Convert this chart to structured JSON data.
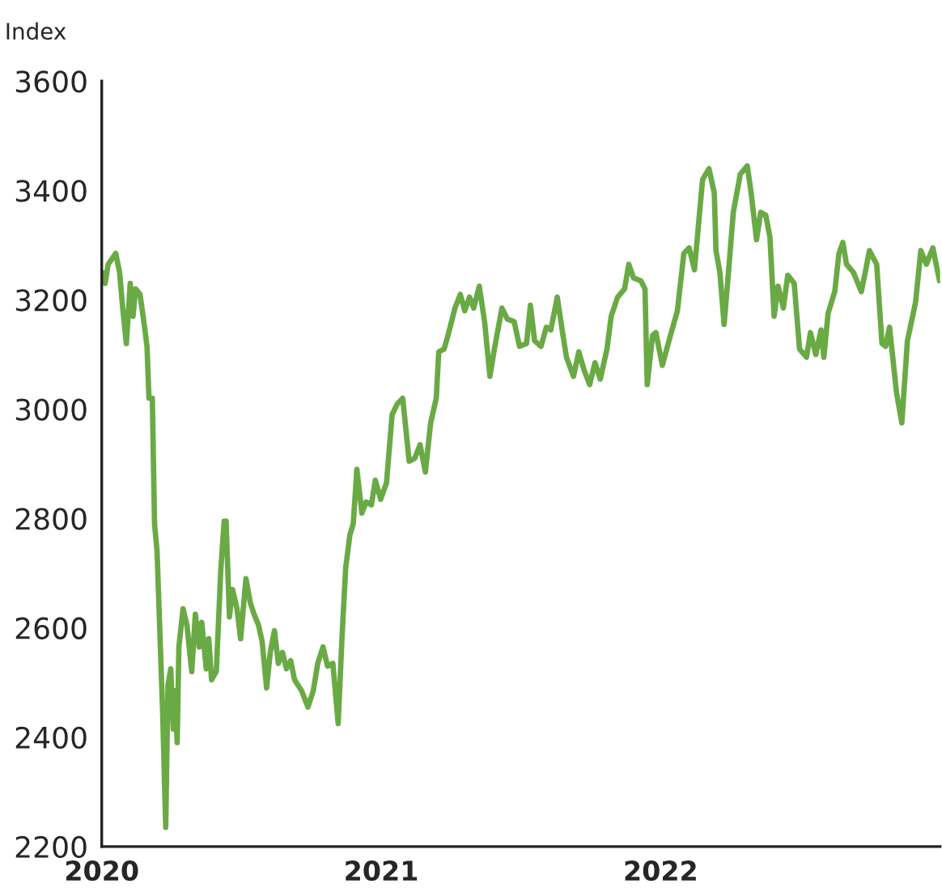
{
  "chart_data": {
    "type": "line",
    "ylabel": "Index",
    "xlim": [
      2020,
      2023
    ],
    "xticks": [
      2020,
      2021,
      2022
    ],
    "ylim": [
      2200,
      3600
    ],
    "yticks": [
      2200,
      2400,
      2600,
      2800,
      3000,
      3200,
      3400,
      3600
    ],
    "grid": false,
    "legend": false,
    "series": [
      {
        "color": "#6aaa45",
        "x": [
          2020.002,
          2020.012,
          2020.023,
          2020.05,
          2020.064,
          2020.075,
          2020.088,
          2020.102,
          2020.112,
          2020.121,
          2020.137,
          2020.152,
          2020.162,
          2020.169,
          2020.181,
          2020.189,
          2020.198,
          2020.218,
          2020.225,
          2020.229,
          2020.237,
          2020.247,
          2020.256,
          2020.262,
          2020.27,
          2020.276,
          2020.291,
          2020.305,
          2020.322,
          2020.335,
          2020.349,
          2020.358,
          2020.374,
          2020.383,
          2020.393,
          2020.41,
          2020.426,
          2020.438,
          2020.445,
          2020.457,
          2020.468,
          2020.484,
          2020.497,
          2020.516,
          2020.532,
          2020.545,
          2020.561,
          2020.574,
          2020.59,
          2020.603,
          2020.618,
          2020.632,
          2020.647,
          2020.661,
          2020.676,
          2020.69,
          2020.715,
          2020.738,
          2020.757,
          2020.773,
          2020.792,
          2020.808,
          2020.827,
          2020.846,
          2020.86,
          2020.873,
          2020.888,
          2020.9,
          2020.913,
          2020.931,
          2020.946,
          2020.965,
          2020.979,
          2020.998,
          2021.019,
          2021.039,
          2021.058,
          2021.077,
          2021.1,
          2021.12,
          2021.139,
          2021.158,
          2021.177,
          2021.197,
          2021.206,
          2021.225,
          2021.239,
          2021.264,
          2021.283,
          2021.299,
          2021.316,
          2021.331,
          2021.351,
          2021.37,
          2021.389,
          2021.405,
          2021.432,
          2021.451,
          2021.476,
          2021.495,
          2021.52,
          2021.534,
          2021.549,
          2021.572,
          2021.591,
          2021.607,
          2021.63,
          2021.649,
          2021.663,
          2021.688,
          2021.707,
          2021.727,
          2021.746,
          2021.765,
          2021.784,
          2021.808,
          2021.823,
          2021.846,
          2021.871,
          2021.886,
          2021.903,
          2021.929,
          2021.944,
          2021.952,
          2021.971,
          2021.983,
          2022.006,
          2022.035,
          2022.06,
          2022.083,
          2022.102,
          2022.121,
          2022.135,
          2022.15,
          2022.173,
          2022.192,
          2022.198,
          2022.212,
          2022.227,
          2022.241,
          2022.26,
          2022.285,
          2022.31,
          2022.324,
          2022.343,
          2022.358,
          2022.376,
          2022.391,
          2022.406,
          2022.42,
          2022.439,
          2022.455,
          2022.478,
          2022.497,
          2022.522,
          2022.536,
          2022.555,
          2022.574,
          2022.584,
          2022.599,
          2022.623,
          2022.638,
          2022.652,
          2022.665,
          2022.69,
          2022.718,
          2022.734,
          2022.747,
          2022.773,
          2022.792,
          2022.805,
          2022.819,
          2022.844,
          2022.863,
          2022.883,
          2022.912,
          2022.931,
          2022.951,
          2022.974,
          2022.998
        ],
        "values": [
          3250,
          3230,
          3265,
          3285,
          3250,
          3185,
          3120,
          3230,
          3170,
          3220,
          3210,
          3155,
          3115,
          3020,
          3020,
          2790,
          2740,
          2445,
          2310,
          2235,
          2495,
          2525,
          2415,
          2485,
          2390,
          2565,
          2635,
          2605,
          2520,
          2625,
          2565,
          2610,
          2525,
          2580,
          2505,
          2520,
          2705,
          2795,
          2795,
          2620,
          2670,
          2635,
          2580,
          2690,
          2645,
          2625,
          2605,
          2575,
          2490,
          2555,
          2595,
          2535,
          2555,
          2525,
          2540,
          2505,
          2485,
          2455,
          2485,
          2535,
          2565,
          2530,
          2535,
          2425,
          2585,
          2710,
          2770,
          2790,
          2890,
          2810,
          2830,
          2825,
          2870,
          2835,
          2865,
          2990,
          3010,
          3020,
          2905,
          2910,
          2935,
          2885,
          2975,
          3020,
          3105,
          3110,
          3135,
          3185,
          3210,
          3180,
          3205,
          3185,
          3225,
          3160,
          3060,
          3110,
          3185,
          3165,
          3160,
          3115,
          3120,
          3190,
          3125,
          3115,
          3150,
          3145,
          3205,
          3140,
          3095,
          3060,
          3105,
          3070,
          3045,
          3085,
          3055,
          3110,
          3170,
          3205,
          3220,
          3265,
          3240,
          3235,
          3220,
          3045,
          3135,
          3140,
          3080,
          3135,
          3180,
          3285,
          3295,
          3255,
          3335,
          3420,
          3440,
          3395,
          3290,
          3250,
          3155,
          3240,
          3360,
          3430,
          3445,
          3395,
          3310,
          3360,
          3355,
          3315,
          3170,
          3225,
          3185,
          3245,
          3230,
          3110,
          3095,
          3140,
          3100,
          3145,
          3095,
          3175,
          3215,
          3285,
          3305,
          3265,
          3250,
          3215,
          3255,
          3290,
          3265,
          3120,
          3115,
          3150,
          3030,
          2975,
          3125,
          3195,
          3290,
          3265,
          3295,
          3235
        ]
      }
    ]
  }
}
